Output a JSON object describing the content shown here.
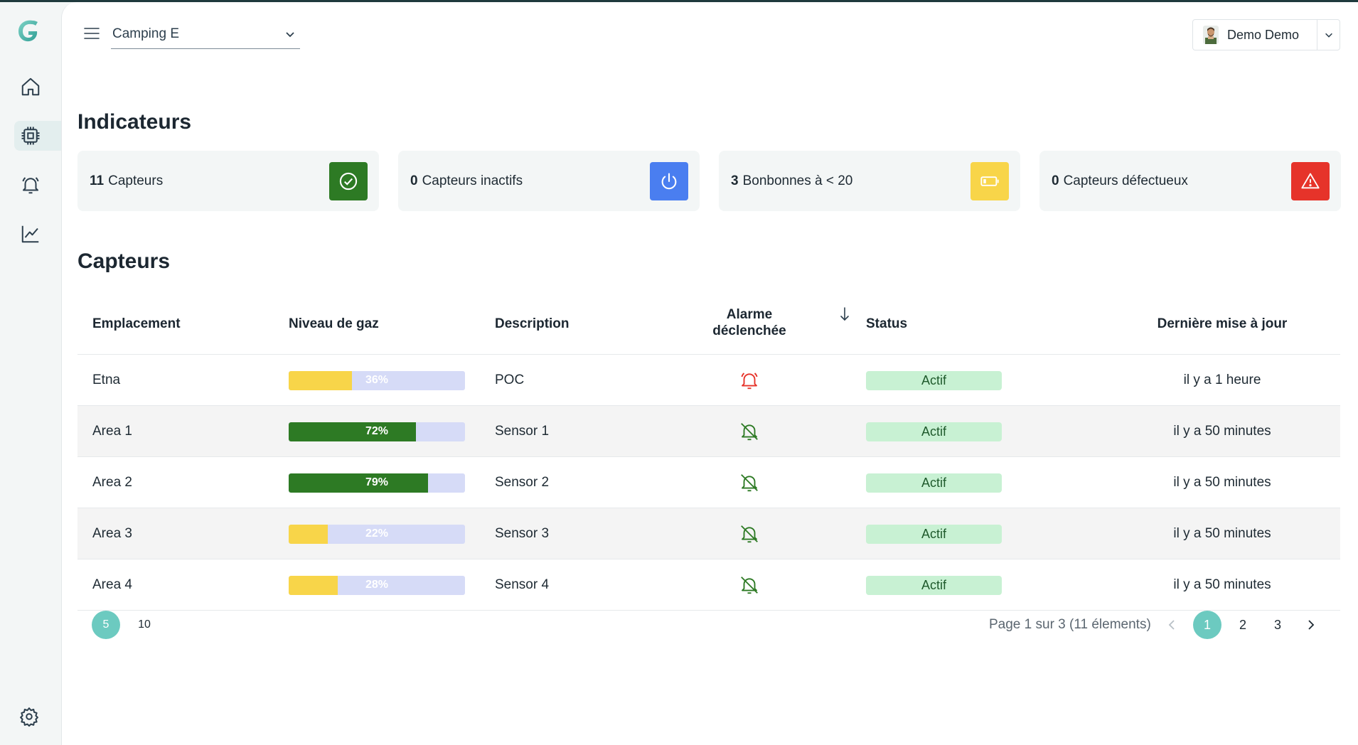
{
  "colors": {
    "accent": "#6ccac0",
    "green_dark": "#2d7a24",
    "blue": "#4a7ef0",
    "yellow": "#f8d549",
    "red": "#e6332a",
    "gauge_bg": "#d6dbf7",
    "status_bg": "#c8f1d3"
  },
  "sidebar": {
    "items": [
      {
        "name": "home",
        "icon": "home-icon",
        "active": false
      },
      {
        "name": "sensors",
        "icon": "chip-icon",
        "active": true
      },
      {
        "name": "alarms",
        "icon": "bell-icon",
        "active": false
      },
      {
        "name": "stats",
        "icon": "chart-line-icon",
        "active": false
      }
    ],
    "settings_icon": "gear-icon"
  },
  "header": {
    "camp_selected": "Camping E",
    "user_name": "Demo Demo"
  },
  "indicators": {
    "title": "Indicateurs",
    "cards": [
      {
        "count": "11",
        "label": "Capteurs",
        "icon": "check-circle-icon",
        "color": "#2d7a24"
      },
      {
        "count": "0",
        "label": "Capteurs inactifs",
        "icon": "power-icon",
        "color": "#4a7ef0"
      },
      {
        "count": "3",
        "label": "Bonbonnes à < 20",
        "icon": "battery-low-icon",
        "color": "#f8d549"
      },
      {
        "count": "0",
        "label": "Capteurs défectueux",
        "icon": "warning-triangle-icon",
        "color": "#e6332a"
      }
    ]
  },
  "sensors": {
    "title": "Capteurs",
    "columns": {
      "location": "Emplacement",
      "gas": "Niveau de gaz",
      "description": "Description",
      "alarm_line1": "Alarme",
      "alarm_line2": "déclenchée",
      "status": "Status",
      "updated": "Dernière mise à jour"
    },
    "rows": [
      {
        "location": "Etna",
        "gas_label": "36%",
        "gas": 0.36,
        "gas_color": "#f8d549",
        "description": "POC",
        "alarm": true,
        "status": "Actif",
        "updated": "il y a 1 heure"
      },
      {
        "location": "Area 1",
        "gas_label": "72%",
        "gas": 0.72,
        "gas_color": "#2d7a24",
        "description": "Sensor 1",
        "alarm": false,
        "status": "Actif",
        "updated": "il y a 50 minutes"
      },
      {
        "location": "Area 2",
        "gas_label": "79%",
        "gas": 0.79,
        "gas_color": "#2d7a24",
        "description": "Sensor 2",
        "alarm": false,
        "status": "Actif",
        "updated": "il y a 50 minutes"
      },
      {
        "location": "Area 3",
        "gas_label": "22%",
        "gas": 0.22,
        "gas_color": "#f8d549",
        "description": "Sensor 3",
        "alarm": false,
        "status": "Actif",
        "updated": "il y a 50 minutes"
      },
      {
        "location": "Area 4",
        "gas_label": "28%",
        "gas": 0.28,
        "gas_color": "#f8d549",
        "description": "Sensor 4",
        "alarm": false,
        "status": "Actif",
        "updated": "il y a 50 minutes"
      }
    ]
  },
  "pagination": {
    "sizes": [
      "5",
      "10"
    ],
    "info": "Page 1 sur 3 (11 élements)",
    "pages": [
      "1",
      "2",
      "3"
    ]
  }
}
